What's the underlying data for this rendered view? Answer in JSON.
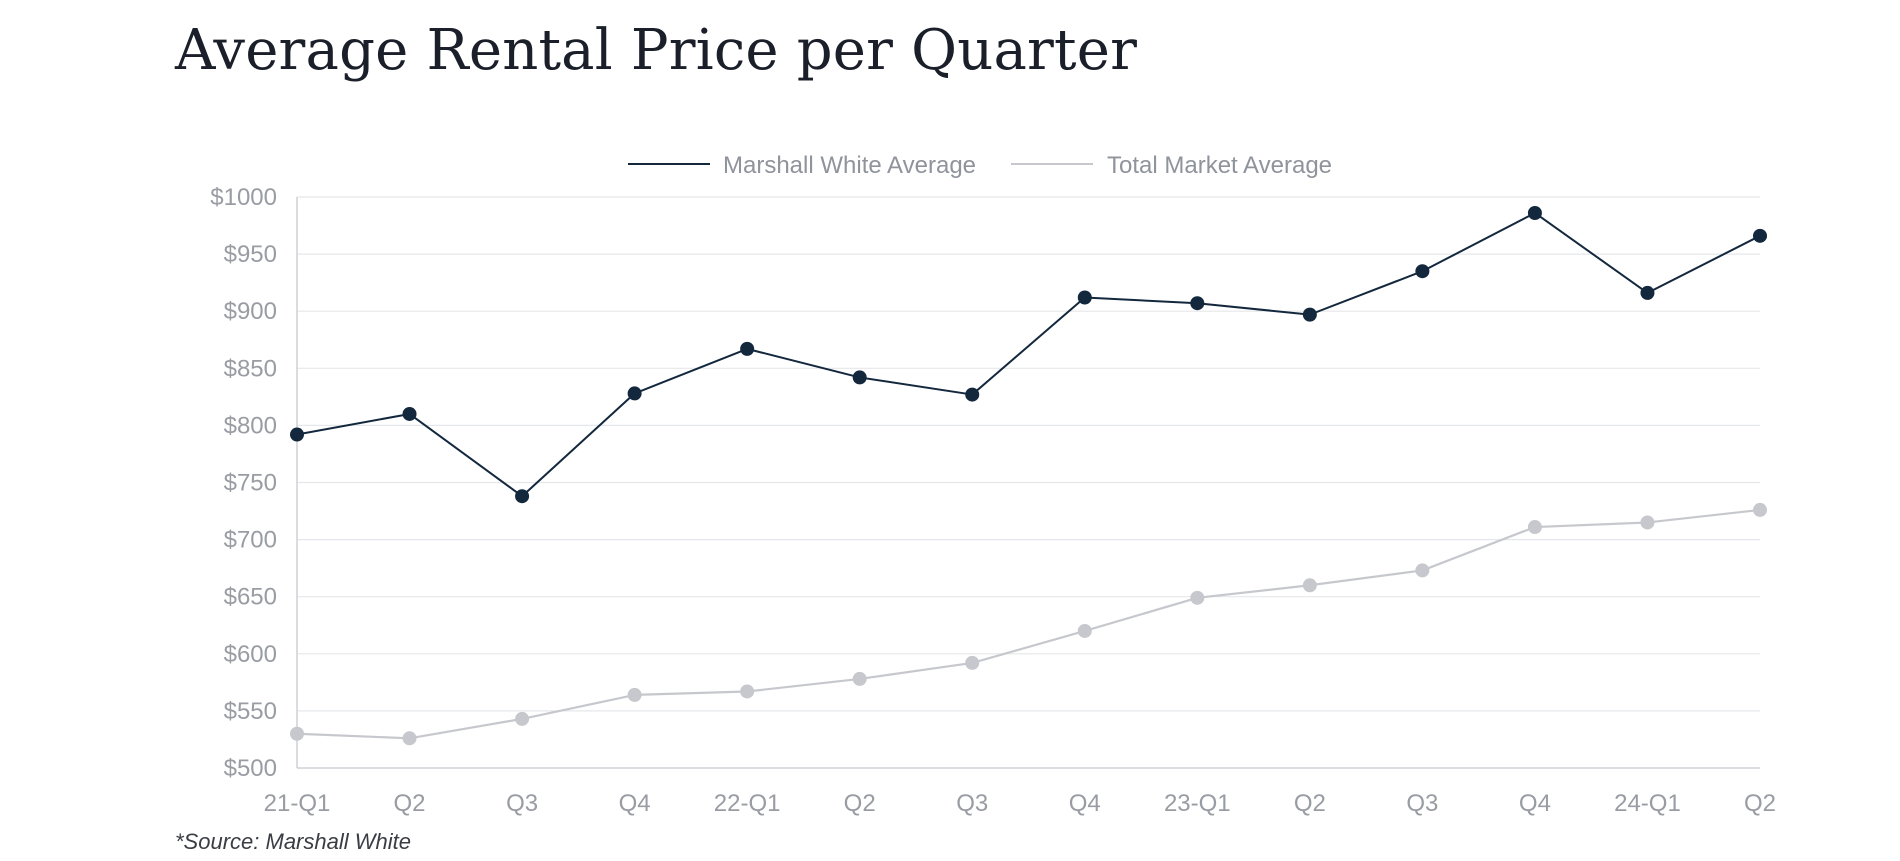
{
  "chart_data": {
    "type": "line",
    "title": "Average Rental Price per Quarter",
    "source_note": "*Source: Marshall White",
    "categories": [
      "21-Q1",
      "Q2",
      "Q3",
      "Q4",
      "22-Q1",
      "Q2",
      "Q3",
      "Q4",
      "23-Q1",
      "Q2",
      "Q3",
      "Q4",
      "24-Q1",
      "Q2"
    ],
    "series": [
      {
        "name": "Marshall White Average",
        "color": "#13273d",
        "values": [
          792,
          810,
          738,
          828,
          867,
          842,
          827,
          912,
          907,
          897,
          935,
          986,
          916,
          966
        ]
      },
      {
        "name": "Total Market Average",
        "color": "#c6c8cd",
        "values": [
          530,
          526,
          543,
          564,
          567,
          578,
          592,
          620,
          649,
          660,
          673,
          711,
          715,
          726
        ]
      }
    ],
    "y_ticks": [
      "$1000",
      "$950",
      "$900",
      "$850",
      "$800",
      "$750",
      "$700",
      "$650",
      "$600",
      "$550",
      "$500"
    ],
    "y_tick_values": [
      1000,
      950,
      900,
      850,
      800,
      750,
      700,
      650,
      600,
      550,
      500
    ],
    "ylim": [
      500,
      1000
    ],
    "grid": true,
    "legend_position": "top-center"
  }
}
